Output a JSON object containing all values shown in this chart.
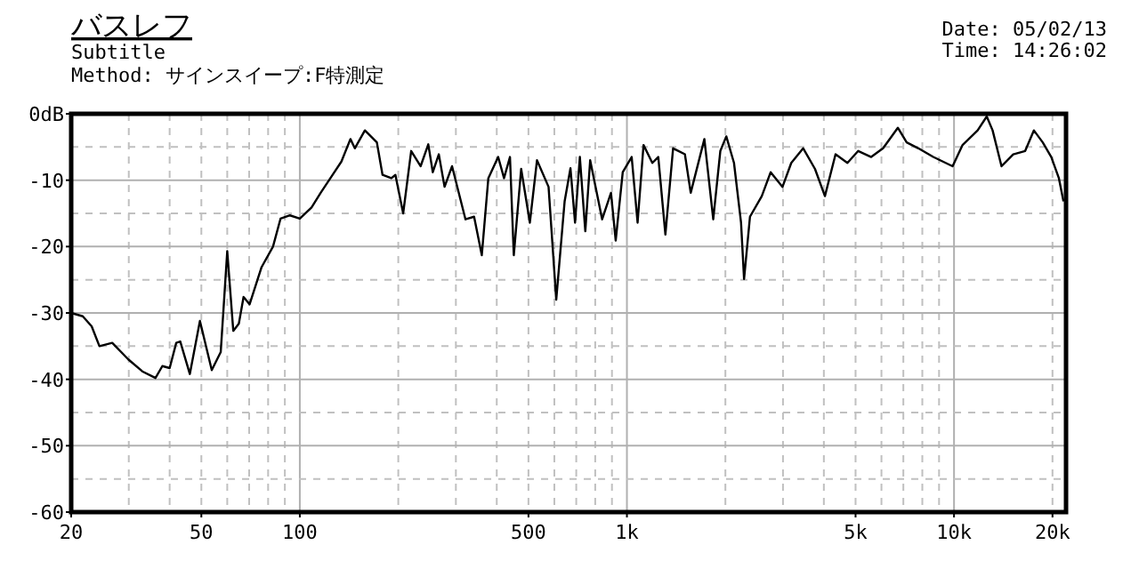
{
  "chart_data": {
    "type": "line",
    "title": "バスレフ",
    "subtitle": "Subtitle",
    "annotations": [
      "Method:  サインスイープ:F特測定",
      "Date: 05/02/13",
      "Time: 14:26:02"
    ],
    "log": "x",
    "grid": true,
    "marker": "none",
    "line_style": "solid",
    "xlim": [
      20,
      22000
    ],
    "xticks": [
      20,
      50,
      100,
      500,
      {
        "value": 1000,
        "label": "1k"
      },
      {
        "value": 5000,
        "label": "5k"
      },
      {
        "value": 10000,
        "label": "10k"
      },
      {
        "value": 20000,
        "label": "20k"
      }
    ],
    "ylim": [
      -60,
      0
    ],
    "yticks": [
      {
        "value": 0,
        "label": "0dB"
      },
      -10,
      -20,
      -30,
      -40,
      -50,
      -60
    ],
    "series": [
      {
        "color": "#000000",
        "x": [
          20,
          21.7,
          23.1,
          24.4,
          26.7,
          29.9,
          33.0,
          36.2,
          38.0,
          40,
          41.9,
          43.1,
          46.1,
          49.5,
          53.8,
          57.3,
          60,
          62.6,
          65.1,
          67.3,
          70.2,
          76.4,
          82.8,
          87.3,
          93.3,
          100,
          108.6,
          115.8,
          124.8,
          134,
          142.8,
          147.3,
          158.1,
          172,
          179,
          190.5,
          196,
          207,
          219,
          234,
          247,
          255,
          266,
          277,
          292,
          321,
          341,
          360,
          377,
          404,
          421,
          439,
          451,
          475,
          505,
          531,
          576,
          608,
          645,
          672,
          694,
          718,
          746,
          772,
          840,
          894,
          924,
          971,
          1034,
          1078,
          1124,
          1196,
          1247,
          1311,
          1384,
          1504,
          1567,
          1725,
          1836,
          1930,
          2013,
          2125,
          2233,
          2281,
          2378,
          2584,
          2751,
          2990,
          3180,
          3459,
          3758,
          4030,
          4343,
          4722,
          5094,
          5582,
          6069,
          6733,
          7164,
          7778,
          8640,
          9900,
          10620,
          11810,
          12590,
          13120,
          13970,
          15170,
          16500,
          17540,
          18670,
          19830,
          20920,
          21610
        ],
        "values": [
          -30.0,
          -30.5,
          -32,
          -35,
          -34.5,
          -37,
          -38.8,
          -39.8,
          -38,
          -38.3,
          -34.5,
          -34.3,
          -39.2,
          -31.2,
          -38.6,
          -35.9,
          -20.7,
          -32.7,
          -31.6,
          -27.6,
          -28.7,
          -23.1,
          -20,
          -15.8,
          -15.3,
          -15.8,
          -14.1,
          -11.9,
          -9.5,
          -7.2,
          -3.8,
          -5.2,
          -2.5,
          -4.3,
          -9.2,
          -9.7,
          -9.2,
          -15,
          -5.6,
          -7.9,
          -4.6,
          -8.8,
          -6.1,
          -11,
          -7.9,
          -15.9,
          -15.5,
          -21.3,
          -9.7,
          -6.5,
          -9.7,
          -6.5,
          -21.3,
          -8.3,
          -16.4,
          -7.0,
          -11,
          -28,
          -13.2,
          -8.2,
          -16.4,
          -6.5,
          -17.7,
          -7,
          -15.9,
          -11.9,
          -19.1,
          -8.8,
          -6.5,
          -16.4,
          -4.7,
          -7.4,
          -6.5,
          -18.2,
          -5.2,
          -6.1,
          -11.9,
          -3.8,
          -15.9,
          -5.6,
          -3.4,
          -7.4,
          -16.4,
          -24.9,
          -15.5,
          -12.4,
          -8.8,
          -11,
          -7.4,
          -5.2,
          -8.3,
          -12.4,
          -6.1,
          -7.4,
          -5.6,
          -6.5,
          -5.2,
          -2.1,
          -4.3,
          -5.2,
          -6.5,
          -7.9,
          -4.7,
          -2.5,
          -0.4,
          -2.5,
          -7.9,
          -6.1,
          -5.6,
          -2.5,
          -4.3,
          -6.5,
          -9.7,
          -13.2
        ]
      }
    ]
  }
}
